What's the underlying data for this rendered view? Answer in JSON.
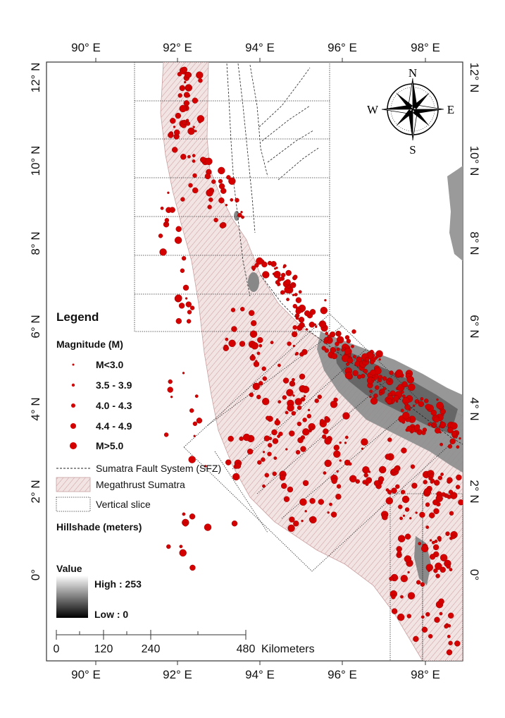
{
  "map": {
    "top_axis": [
      "90° E",
      "92° E",
      "94° E",
      "96° E",
      "98° E"
    ],
    "bottom_axis": [
      "90° E",
      "92° E",
      "94° E",
      "96° E",
      "98° E"
    ],
    "left_axis": [
      "12° N",
      "10° N",
      "8° N",
      "6° N",
      "4° N",
      "2° N",
      "0°"
    ],
    "right_axis": [
      "12° N",
      "10° N",
      "8° N",
      "6° N",
      "4° N",
      "2° N",
      "0°"
    ]
  },
  "compass": {
    "n": "N",
    "s": "S",
    "e": "E",
    "w": "W"
  },
  "legend": {
    "title": "Legend",
    "magnitude_title": "Magnitude (M)",
    "magnitudes": [
      "M<3.0",
      "3.5 - 3.9",
      "4.0 - 4.3",
      "4.4 - 4.9",
      "M>5.0"
    ],
    "sfz": "Sumatra Fault System (SFZ)",
    "megathrust": "Megathrust Sumatra",
    "slice": "Vertical slice",
    "hillshade_title": "Hillshade (meters)",
    "value_title": "Value",
    "high": "High : 253",
    "low": "Low : 0"
  },
  "scalebar": {
    "ticks": [
      "0",
      "120",
      "240",
      "480"
    ],
    "unit": "Kilometers"
  },
  "colors": {
    "quake": "#d40000",
    "quake_stroke": "#8a0000",
    "megathrust": "#e9cfcf",
    "hillshade": "#8c8c8c"
  }
}
